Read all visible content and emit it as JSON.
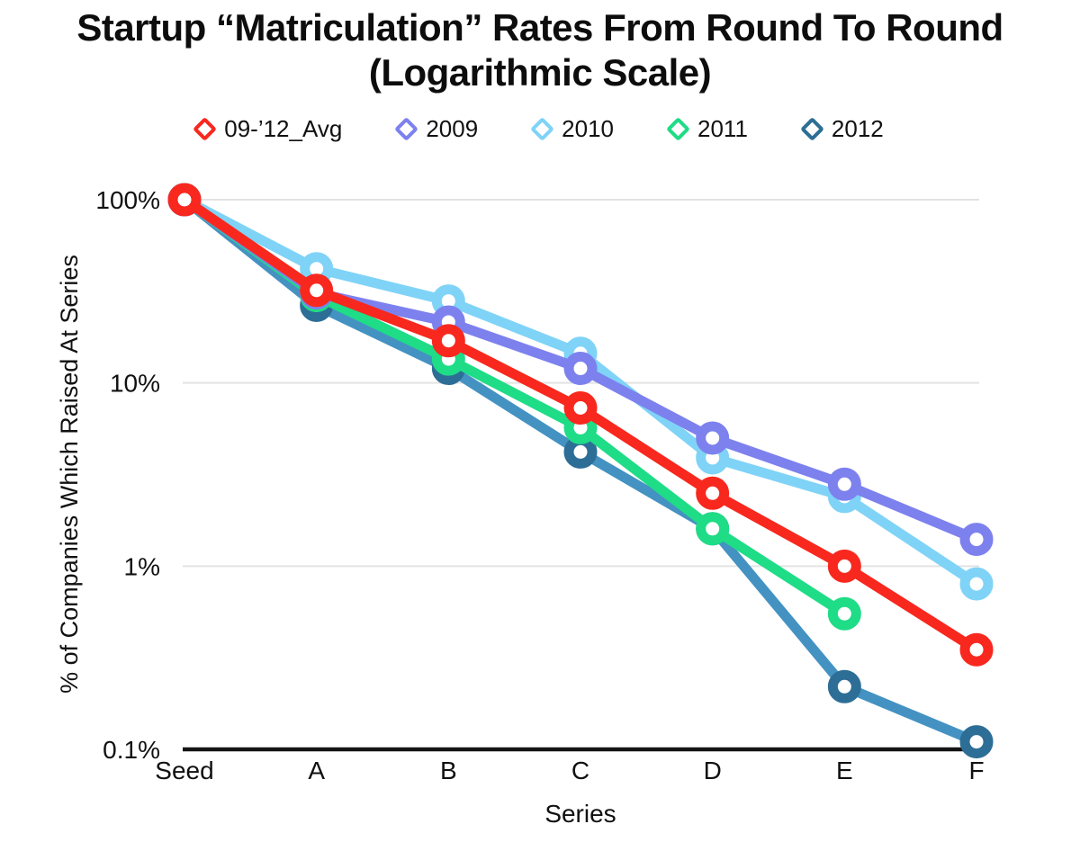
{
  "title": {
    "line1": "Startup “Matriculation” Rates From Round To Round",
    "line2": "(Logarithmic Scale)"
  },
  "chart_data": {
    "type": "line",
    "x_axis": {
      "label": "Series",
      "categories": [
        "Seed",
        "A",
        "B",
        "C",
        "D",
        "E",
        "F"
      ]
    },
    "y_axis": {
      "label": "% of Companies Which Raised At Series",
      "scale": "logarithmic",
      "range": [
        0.1,
        100
      ],
      "ticks": [
        {
          "label": "100%",
          "value": 100
        },
        {
          "label": "10%",
          "value": 10
        },
        {
          "label": "1%",
          "value": 1
        },
        {
          "label": "0.1%",
          "value": 0.1
        }
      ]
    },
    "series": [
      {
        "name": "09-’12_Avg",
        "color": "#f8281e",
        "values": [
          100,
          32,
          17,
          7.3,
          2.5,
          1.0,
          0.35
        ]
      },
      {
        "name": "2009",
        "color": "#7d81ee",
        "values": [
          100,
          31,
          21.5,
          12,
          5.0,
          2.8,
          1.4
        ]
      },
      {
        "name": "2010",
        "color": "#7fd3f7",
        "values": [
          100,
          42,
          28,
          14.5,
          3.9,
          2.4,
          0.8
        ]
      },
      {
        "name": "2011",
        "color": "#1fdc86",
        "values": [
          100,
          30,
          13.5,
          5.7,
          1.6,
          0.55,
          null
        ]
      },
      {
        "name": "2012",
        "color": "#4492c2",
        "marker_color": "#2d6e96",
        "values": [
          100,
          26.5,
          12,
          4.2,
          1.6,
          0.22,
          0.11
        ]
      }
    ],
    "draw_order": [
      4,
      3,
      2,
      1,
      0
    ],
    "legend_position": "top",
    "grid": "horizontal-on-decades",
    "grid_color": "#e3e3e3",
    "axis_color": "#141414"
  }
}
